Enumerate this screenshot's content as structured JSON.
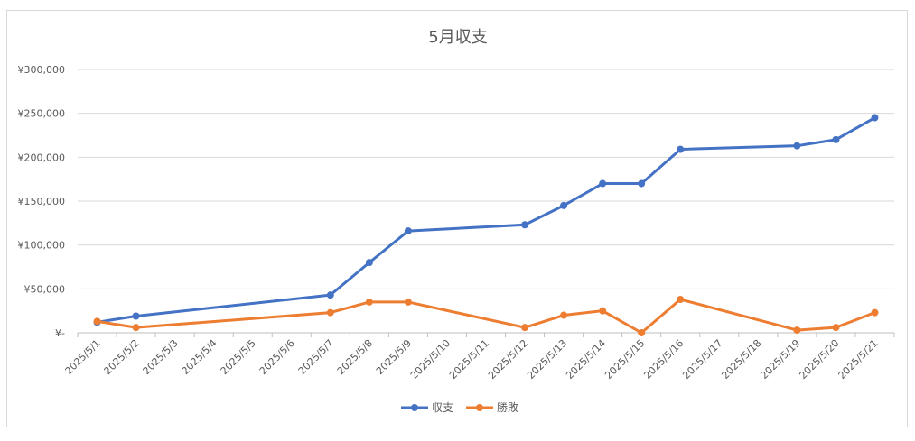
{
  "chart_data": {
    "type": "line",
    "title": "5月収支",
    "categories": [
      "2025/5/1",
      "2025/5/2",
      "2025/5/3",
      "2025/5/4",
      "2025/5/5",
      "2025/5/6",
      "2025/5/7",
      "2025/5/8",
      "2025/5/9",
      "2025/5/10",
      "2025/5/11",
      "2025/5/12",
      "2025/5/13",
      "2025/5/14",
      "2025/5/15",
      "2025/5/16",
      "2025/5/17",
      "2025/5/18",
      "2025/5/19",
      "2025/5/20",
      "2025/5/21"
    ],
    "y_ticks": [
      0,
      50000,
      100000,
      150000,
      200000,
      250000,
      300000
    ],
    "y_tick_labels": [
      "¥-",
      "¥50,000",
      "¥100,000",
      "¥150,000",
      "¥200,000",
      "¥250,000",
      "¥300,000"
    ],
    "ylim": [
      0,
      300000
    ],
    "grid": true,
    "legend_position": "bottom",
    "series": [
      {
        "name": "収支",
        "color": "#4472c4",
        "values": [
          12000,
          19000,
          null,
          null,
          null,
          null,
          43000,
          80000,
          116000,
          null,
          null,
          123000,
          145000,
          170000,
          170000,
          209000,
          null,
          null,
          213000,
          220000,
          245000
        ]
      },
      {
        "name": "勝敗",
        "color": "#ed7d31",
        "values": [
          13000,
          6000,
          null,
          null,
          null,
          null,
          23000,
          35000,
          35000,
          null,
          null,
          6000,
          20000,
          25000,
          0,
          38000,
          null,
          null,
          3000,
          6000,
          23000
        ]
      }
    ]
  }
}
